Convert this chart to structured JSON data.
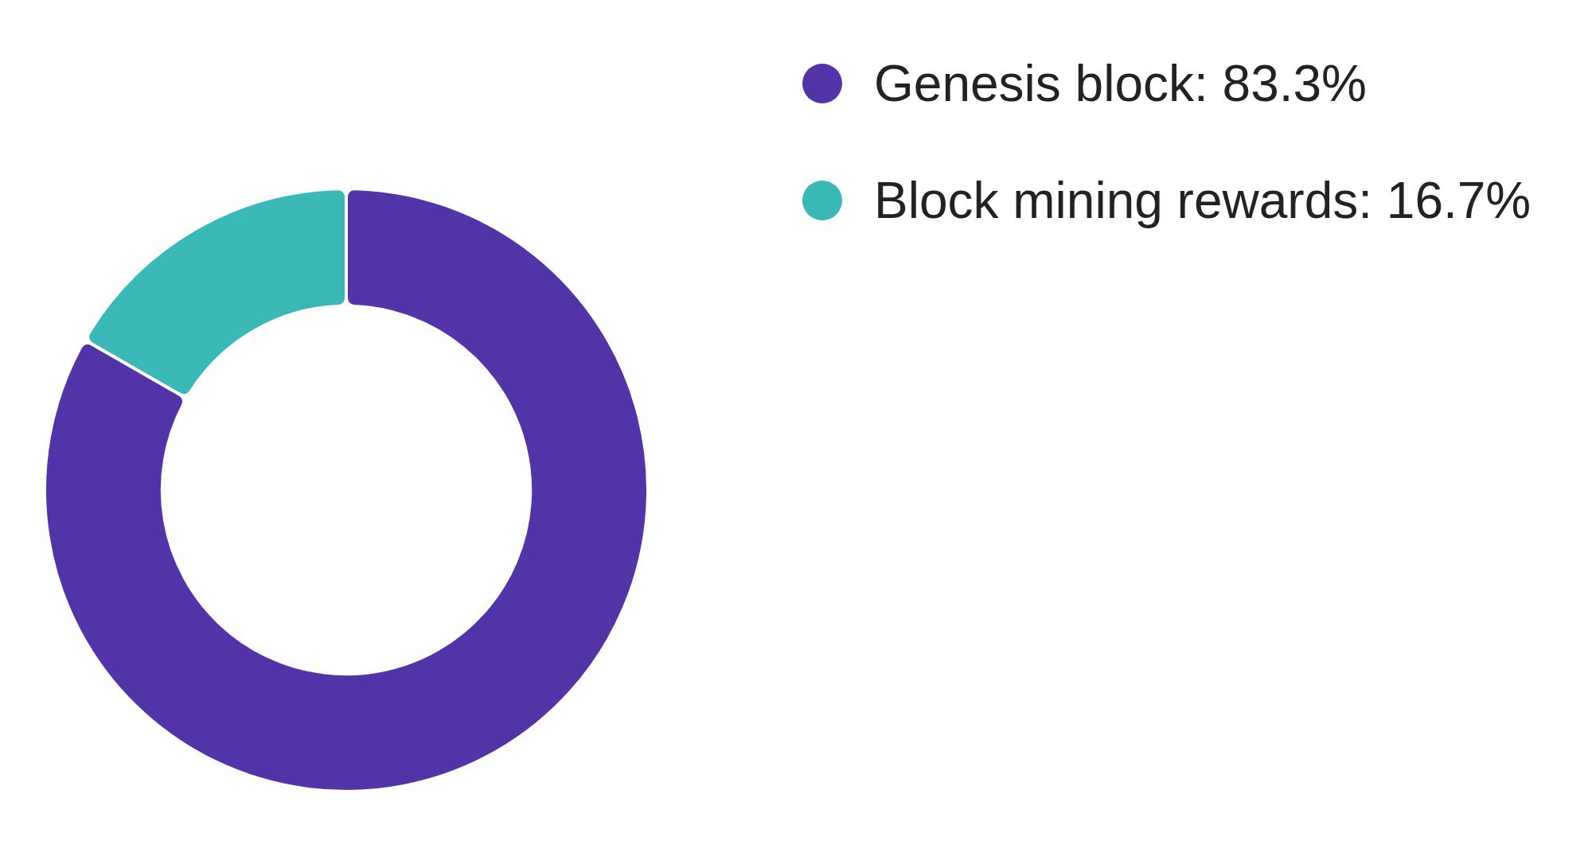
{
  "chart_data": {
    "type": "donut",
    "categories": [
      "Genesis block: 83.3%",
      "Block mining rewards: 16.7%"
    ],
    "values": [
      83.3,
      16.7
    ],
    "colors": [
      "#5233a8",
      "#3ab7b7"
    ],
    "legend": "right"
  }
}
